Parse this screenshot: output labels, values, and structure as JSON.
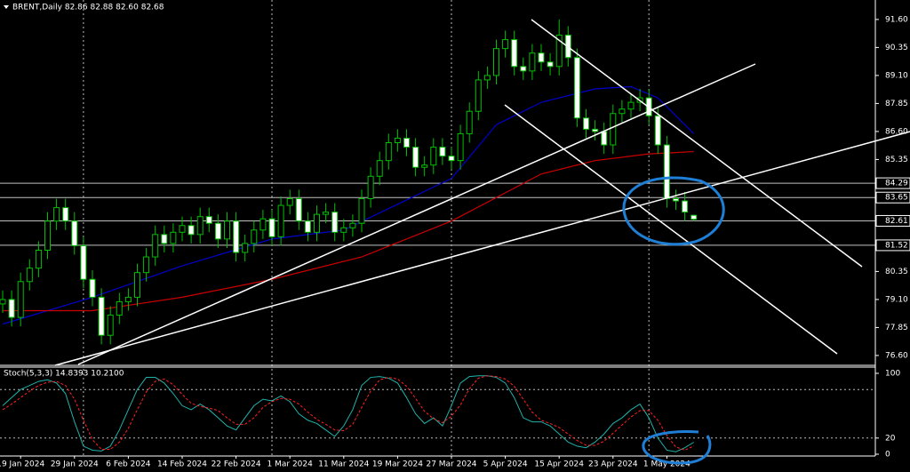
{
  "chart_data": {
    "type": "candlestick",
    "title": "BRENT,Daily 82.86 82.88 82.60 82.68",
    "categories": [
      null,
      null,
      "19 Jan 2024",
      null,
      null,
      null,
      null,
      null,
      "29 Jan 2024",
      null,
      null,
      null,
      null,
      null,
      "6 Feb 2024",
      null,
      null,
      null,
      null,
      null,
      "14 Feb 2024",
      null,
      null,
      null,
      null,
      null,
      "22 Feb 2024",
      null,
      null,
      null,
      null,
      null,
      "1 Mar 2024",
      null,
      null,
      null,
      null,
      null,
      "11 Mar 2024",
      null,
      null,
      null,
      null,
      null,
      "19 Mar 2024",
      null,
      null,
      null,
      null,
      null,
      "27 Mar 2024",
      null,
      null,
      null,
      null,
      null,
      "5 Apr 2024",
      null,
      null,
      null,
      null,
      null,
      "15 Apr 2024",
      null,
      null,
      null,
      null,
      null,
      "23 Apr 2024",
      null,
      null,
      null,
      null,
      null,
      "1 May 2024",
      null,
      null,
      null
    ],
    "open": [
      78.9,
      79.1,
      78.3,
      79.9,
      80.5,
      81.3,
      82.6,
      83.2,
      82.6,
      81.5,
      80.0,
      79.2,
      77.5,
      78.4,
      79.0,
      79.2,
      80.3,
      81.0,
      82.0,
      81.6,
      82.1,
      82.4,
      82.0,
      82.8,
      82.5,
      81.8,
      82.6,
      81.2,
      81.6,
      82.2,
      82.7,
      81.9,
      83.3,
      83.6,
      82.6,
      82.1,
      82.9,
      83.0,
      82.1,
      82.3,
      82.5,
      83.6,
      84.6,
      85.3,
      86.1,
      86.3,
      85.9,
      85.0,
      85.1,
      85.9,
      85.5,
      85.3,
      86.5,
      87.5,
      88.9,
      89.1,
      90.3,
      90.7,
      89.5,
      89.3,
      90.1,
      89.7,
      89.5,
      90.9,
      89.9,
      87.2,
      86.7,
      86.6,
      86.0,
      87.4,
      87.6,
      87.9,
      88.1,
      87.3,
      86.0,
      83.6,
      83.5,
      82.86
    ],
    "high": [
      79.5,
      79.5,
      80.3,
      80.9,
      81.7,
      83.0,
      83.6,
      83.6,
      83.0,
      81.9,
      80.4,
      79.6,
      78.8,
      79.4,
      79.6,
      80.7,
      81.4,
      82.4,
      82.4,
      82.5,
      82.8,
      82.8,
      83.2,
      83.2,
      82.9,
      83.0,
      83.0,
      82.0,
      82.6,
      83.1,
      83.1,
      83.7,
      84.0,
      84.0,
      83.0,
      83.3,
      83.4,
      83.4,
      82.7,
      82.9,
      84.0,
      85.0,
      85.7,
      86.5,
      86.7,
      86.7,
      86.3,
      85.5,
      86.3,
      86.3,
      85.9,
      86.9,
      87.9,
      89.3,
      89.5,
      90.7,
      91.1,
      91.1,
      89.9,
      90.5,
      90.5,
      90.1,
      91.6,
      91.3,
      90.3,
      87.6,
      87.1,
      87.0,
      87.8,
      88.0,
      88.3,
      88.5,
      88.5,
      87.7,
      86.4,
      84.0,
      83.9,
      82.88
    ],
    "low": [
      78.5,
      77.9,
      77.9,
      79.5,
      80.1,
      80.9,
      82.2,
      82.2,
      81.1,
      79.6,
      78.8,
      77.1,
      77.1,
      78.0,
      78.6,
      78.8,
      79.9,
      80.6,
      81.2,
      81.2,
      81.7,
      81.6,
      81.6,
      82.1,
      81.4,
      81.4,
      80.8,
      80.8,
      81.2,
      81.8,
      81.5,
      81.5,
      82.9,
      82.2,
      81.7,
      81.7,
      82.5,
      81.7,
      81.7,
      81.9,
      82.1,
      83.2,
      84.2,
      84.9,
      85.7,
      85.5,
      84.6,
      84.6,
      84.7,
      85.1,
      84.9,
      84.9,
      86.1,
      87.1,
      88.5,
      88.7,
      89.9,
      89.1,
      88.9,
      88.9,
      89.3,
      89.1,
      89.1,
      89.5,
      86.8,
      86.3,
      86.2,
      85.6,
      85.6,
      87.0,
      87.2,
      87.5,
      86.9,
      85.6,
      83.2,
      83.1,
      82.6,
      82.6
    ],
    "close": [
      79.1,
      78.3,
      79.9,
      80.5,
      81.3,
      82.6,
      83.2,
      82.6,
      81.5,
      80.0,
      79.2,
      77.5,
      78.4,
      79.0,
      79.2,
      80.3,
      81.0,
      82.0,
      81.6,
      82.1,
      82.4,
      82.0,
      82.8,
      82.5,
      81.8,
      82.6,
      81.2,
      81.6,
      82.2,
      82.7,
      81.9,
      83.3,
      83.6,
      82.6,
      82.1,
      82.9,
      83.0,
      82.1,
      82.3,
      82.5,
      83.6,
      84.6,
      85.3,
      86.1,
      86.3,
      85.9,
      85.0,
      85.1,
      85.9,
      85.5,
      85.3,
      86.5,
      87.5,
      88.9,
      89.1,
      90.3,
      90.7,
      89.5,
      89.3,
      90.1,
      89.7,
      89.5,
      90.9,
      89.9,
      87.2,
      86.7,
      86.6,
      86.0,
      87.4,
      87.6,
      87.9,
      88.1,
      87.3,
      86.0,
      83.6,
      83.5,
      83.0,
      82.68
    ],
    "up_color": "#00c000",
    "down_color": "#ffffff",
    "series": [
      {
        "color": "#0000cc",
        "x": [
          0,
          10,
          20,
          30,
          38,
          44,
          50,
          55,
          60,
          66,
          70,
          73,
          77
        ],
        "values": [
          78.0,
          79.2,
          80.6,
          81.8,
          82.2,
          83.35,
          84.5,
          86.9,
          87.9,
          88.5,
          88.6,
          88.1,
          86.5
        ]
      },
      {
        "color": "#cc0000",
        "x": [
          0,
          10,
          20,
          30,
          40,
          50,
          60,
          66,
          72,
          77
        ],
        "values": [
          78.6,
          78.6,
          79.2,
          80.0,
          81.0,
          82.6,
          84.7,
          85.3,
          85.6,
          85.7
        ]
      }
    ],
    "ylim": [
      76.2,
      92.27
    ],
    "yticks": [
      {
        "value": 91.6,
        "label": "91.60"
      },
      {
        "value": 90.35,
        "label": "90.35"
      },
      {
        "value": 89.1,
        "label": "89.10"
      },
      {
        "value": 87.85,
        "label": "87.85"
      },
      {
        "value": 86.6,
        "label": "86.60"
      },
      {
        "value": 85.35,
        "label": "85.35"
      },
      {
        "value": 80.35,
        "label": "80.35"
      },
      {
        "value": 79.1,
        "label": "79.10"
      },
      {
        "value": 77.85,
        "label": "77.85"
      },
      {
        "value": 76.6,
        "label": "76.60"
      }
    ],
    "levels": [
      {
        "value": 84.29,
        "label": "84.29"
      },
      {
        "value": 83.65,
        "label": "83.65"
      },
      {
        "value": 82.61,
        "label": "82.61"
      },
      {
        "value": 81.52,
        "label": "81.52"
      }
    ],
    "separators": [
      9,
      30,
      50,
      72
    ],
    "indicator": {
      "title": "Stoch(5,3,3) 14.8393 10.2100",
      "ylim": [
        -2.2,
        106.6
      ],
      "yticks": [
        100,
        20,
        0
      ],
      "levels": [
        80,
        20
      ],
      "series": [
        {
          "color": "#20b2aa",
          "values": [
            60,
            70,
            80,
            85,
            90,
            92,
            88,
            75,
            40,
            10,
            5,
            4,
            10,
            30,
            55,
            80,
            95,
            95,
            88,
            75,
            60,
            55,
            62,
            55,
            45,
            35,
            30,
            45,
            60,
            68,
            66,
            72,
            65,
            50,
            42,
            38,
            30,
            22,
            35,
            55,
            85,
            95,
            96,
            94,
            88,
            70,
            50,
            38,
            45,
            35,
            60,
            88,
            96,
            97,
            97,
            95,
            88,
            70,
            45,
            40,
            40,
            35,
            25,
            15,
            10,
            8,
            15,
            25,
            38,
            45,
            55,
            62,
            45,
            20,
            5,
            3,
            8,
            14.8393
          ]
        },
        {
          "color": "#ff2020",
          "dashed": true,
          "values": [
            55,
            62,
            70,
            78,
            85,
            89,
            90,
            85,
            68,
            42,
            18,
            6,
            6,
            15,
            32,
            55,
            77,
            90,
            93,
            86,
            74,
            63,
            59,
            57,
            54,
            45,
            37,
            37,
            45,
            58,
            65,
            69,
            68,
            62,
            52,
            43,
            37,
            30,
            29,
            37,
            58,
            78,
            92,
            95,
            93,
            84,
            69,
            53,
            44,
            39,
            47,
            61,
            81,
            94,
            97,
            96,
            93,
            84,
            68,
            52,
            42,
            38,
            33,
            25,
            17,
            11,
            11,
            16,
            26,
            36,
            46,
            54,
            54,
            42,
            23,
            9,
            5,
            10.21
          ]
        }
      ]
    }
  }
}
